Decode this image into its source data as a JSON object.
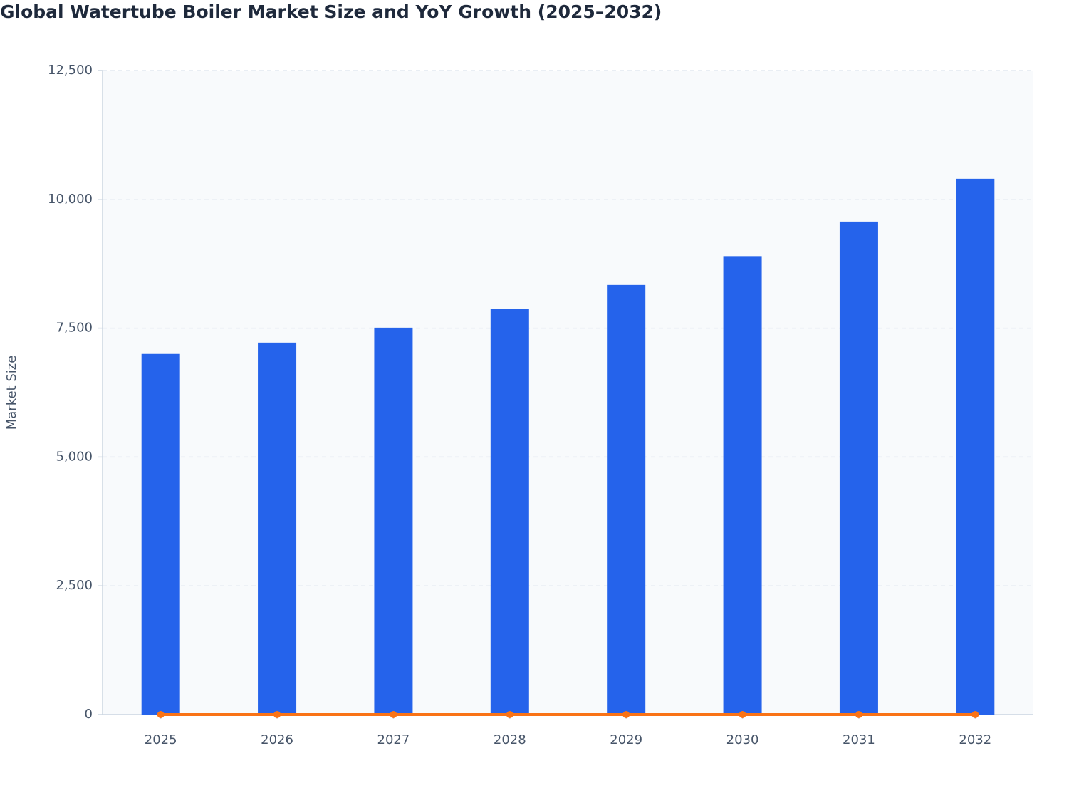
{
  "chart_data": {
    "type": "bar",
    "title": "Global Watertube Boiler Market Size and YoY Growth (2025–2032)",
    "y_label": "Market Size",
    "categories": [
      "2025",
      "2026",
      "2027",
      "2028",
      "2029",
      "2030",
      "2031",
      "2032"
    ],
    "series": [
      {
        "type": "bar",
        "color": "#2563eb",
        "values": [
          7000,
          7220,
          7510,
          7880,
          8340,
          8900,
          9570,
          10400
        ]
      },
      {
        "type": "line",
        "color": "#f97316",
        "values": [
          0,
          0,
          0,
          0,
          0,
          0,
          0,
          0
        ]
      }
    ],
    "ylim": [
      0,
      12500
    ],
    "yticks": [
      0,
      {
        "value": 2500,
        "label": "2,500"
      },
      {
        "value": 5000,
        "label": "5,000"
      },
      {
        "value": 7500,
        "label": "7,500"
      },
      {
        "value": 10000,
        "label": "10,000"
      },
      {
        "value": 12500,
        "label": "12,500"
      }
    ],
    "grid": true
  }
}
